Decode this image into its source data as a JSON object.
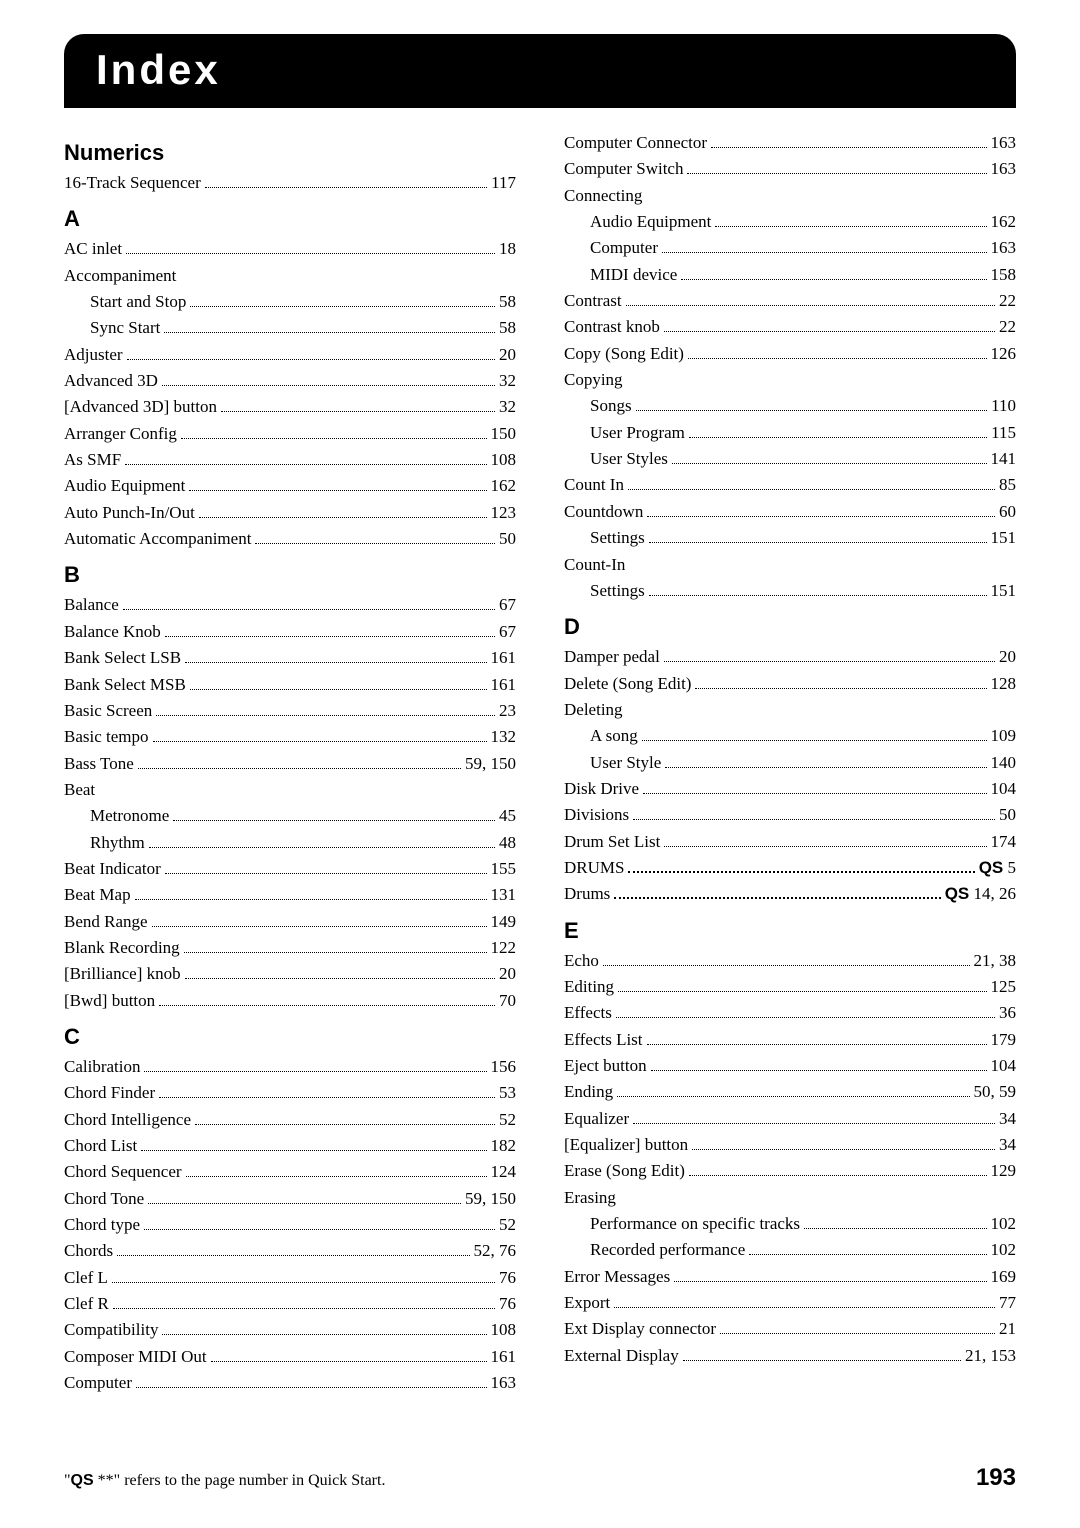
{
  "title": "Index",
  "footnote_pre": "\"",
  "footnote_qs": "QS",
  "footnote_post": " **\" refers to the page number in Quick Start.",
  "page_number": "193",
  "columns": [
    [
      {
        "type": "head",
        "text": "Numerics"
      },
      {
        "type": "entry",
        "label": "16-Track Sequencer",
        "page": "117"
      },
      {
        "type": "head",
        "text": "A"
      },
      {
        "type": "entry",
        "label": "AC inlet",
        "page": "18"
      },
      {
        "type": "entry",
        "label": "Accompaniment",
        "header": true
      },
      {
        "type": "entry",
        "label": "Start and Stop",
        "page": "58",
        "indent": 1
      },
      {
        "type": "entry",
        "label": "Sync Start",
        "page": "58",
        "indent": 1
      },
      {
        "type": "entry",
        "label": "Adjuster",
        "page": "20"
      },
      {
        "type": "entry",
        "label": "Advanced 3D",
        "page": "32"
      },
      {
        "type": "entry",
        "label": "[Advanced 3D] button",
        "page": "32"
      },
      {
        "type": "entry",
        "label": "Arranger Config",
        "page": "150"
      },
      {
        "type": "entry",
        "label": "As SMF",
        "page": "108"
      },
      {
        "type": "entry",
        "label": "Audio Equipment",
        "page": "162"
      },
      {
        "type": "entry",
        "label": "Auto Punch-In/Out",
        "page": "123"
      },
      {
        "type": "entry",
        "label": "Automatic Accompaniment",
        "page": "50"
      },
      {
        "type": "head",
        "text": "B"
      },
      {
        "type": "entry",
        "label": "Balance",
        "page": "67"
      },
      {
        "type": "entry",
        "label": "Balance Knob",
        "page": "67"
      },
      {
        "type": "entry",
        "label": "Bank Select LSB",
        "page": "161"
      },
      {
        "type": "entry",
        "label": "Bank Select MSB",
        "page": "161"
      },
      {
        "type": "entry",
        "label": "Basic Screen",
        "page": "23"
      },
      {
        "type": "entry",
        "label": "Basic tempo",
        "page": "132"
      },
      {
        "type": "entry",
        "label": "Bass Tone",
        "page": "59, 150"
      },
      {
        "type": "entry",
        "label": "Beat",
        "header": true
      },
      {
        "type": "entry",
        "label": "Metronome",
        "page": "45",
        "indent": 1
      },
      {
        "type": "entry",
        "label": "Rhythm",
        "page": "48",
        "indent": 1
      },
      {
        "type": "entry",
        "label": "Beat Indicator",
        "page": "155"
      },
      {
        "type": "entry",
        "label": "Beat Map",
        "page": "131"
      },
      {
        "type": "entry",
        "label": "Bend Range",
        "page": "149"
      },
      {
        "type": "entry",
        "label": "Blank Recording",
        "page": "122"
      },
      {
        "type": "entry",
        "label": "[Brilliance] knob",
        "page": "20"
      },
      {
        "type": "entry",
        "label": "[Bwd] button",
        "page": "70"
      },
      {
        "type": "head",
        "text": "C"
      },
      {
        "type": "entry",
        "label": "Calibration",
        "page": "156"
      },
      {
        "type": "entry",
        "label": "Chord Finder",
        "page": "53"
      },
      {
        "type": "entry",
        "label": "Chord Intelligence",
        "page": "52"
      },
      {
        "type": "entry",
        "label": "Chord List",
        "page": "182"
      },
      {
        "type": "entry",
        "label": "Chord Sequencer",
        "page": "124"
      },
      {
        "type": "entry",
        "label": "Chord Tone",
        "page": "59, 150"
      },
      {
        "type": "entry",
        "label": "Chord type",
        "page": "52"
      },
      {
        "type": "entry",
        "label": "Chords",
        "page": "52, 76"
      },
      {
        "type": "entry",
        "label": "Clef L",
        "page": "76"
      },
      {
        "type": "entry",
        "label": "Clef R",
        "page": "76"
      },
      {
        "type": "entry",
        "label": "Compatibility",
        "page": "108"
      },
      {
        "type": "entry",
        "label": "Composer MIDI Out",
        "page": "161"
      },
      {
        "type": "entry",
        "label": "Computer",
        "page": "163"
      }
    ],
    [
      {
        "type": "entry",
        "label": "Computer Connector",
        "page": "163"
      },
      {
        "type": "entry",
        "label": "Computer Switch",
        "page": "163"
      },
      {
        "type": "entry",
        "label": "Connecting",
        "header": true
      },
      {
        "type": "entry",
        "label": "Audio Equipment",
        "page": "162",
        "indent": 1
      },
      {
        "type": "entry",
        "label": "Computer",
        "page": "163",
        "indent": 1
      },
      {
        "type": "entry",
        "label": "MIDI device",
        "page": "158",
        "indent": 1
      },
      {
        "type": "entry",
        "label": "Contrast",
        "page": "22"
      },
      {
        "type": "entry",
        "label": "Contrast knob",
        "page": "22"
      },
      {
        "type": "entry",
        "label": "Copy (Song Edit)",
        "page": "126"
      },
      {
        "type": "entry",
        "label": "Copying",
        "header": true
      },
      {
        "type": "entry",
        "label": "Songs",
        "page": "110",
        "indent": 1
      },
      {
        "type": "entry",
        "label": "User Program",
        "page": "115",
        "indent": 1
      },
      {
        "type": "entry",
        "label": "User Styles",
        "page": "141",
        "indent": 1
      },
      {
        "type": "entry",
        "label": "Count In",
        "page": "85"
      },
      {
        "type": "entry",
        "label": "Countdown",
        "page": "60"
      },
      {
        "type": "entry",
        "label": "Settings",
        "page": "151",
        "indent": 1
      },
      {
        "type": "entry",
        "label": "Count-In",
        "header": true
      },
      {
        "type": "entry",
        "label": "Settings",
        "page": "151",
        "indent": 1
      },
      {
        "type": "head",
        "text": "D"
      },
      {
        "type": "entry",
        "label": "Damper pedal",
        "page": "20"
      },
      {
        "type": "entry",
        "label": "Delete (Song Edit)",
        "page": "128"
      },
      {
        "type": "entry",
        "label": "Deleting",
        "header": true
      },
      {
        "type": "entry",
        "label": "A song",
        "page": "109",
        "indent": 1
      },
      {
        "type": "entry",
        "label": "User Style",
        "page": "140",
        "indent": 1
      },
      {
        "type": "entry",
        "label": "Disk Drive",
        "page": "104"
      },
      {
        "type": "entry",
        "label": "Divisions",
        "page": "50"
      },
      {
        "type": "entry",
        "label": "Drum Set List",
        "page": "174"
      },
      {
        "type": "entry",
        "label": "DRUMS",
        "qs": "QS",
        "page": " 5",
        "bold": true
      },
      {
        "type": "entry",
        "label": "Drums",
        "qs": "QS",
        "page": " 14, 26",
        "bold": true
      },
      {
        "type": "head",
        "text": "E"
      },
      {
        "type": "entry",
        "label": "Echo",
        "page": "21, 38"
      },
      {
        "type": "entry",
        "label": "Editing",
        "page": "125"
      },
      {
        "type": "entry",
        "label": "Effects",
        "page": "36"
      },
      {
        "type": "entry",
        "label": "Effects List",
        "page": "179"
      },
      {
        "type": "entry",
        "label": "Eject button",
        "page": "104"
      },
      {
        "type": "entry",
        "label": "Ending",
        "page": "50, 59"
      },
      {
        "type": "entry",
        "label": "Equalizer",
        "page": "34"
      },
      {
        "type": "entry",
        "label": "[Equalizer] button",
        "page": "34"
      },
      {
        "type": "entry",
        "label": "Erase (Song Edit)",
        "page": "129"
      },
      {
        "type": "entry",
        "label": "Erasing",
        "header": true
      },
      {
        "type": "entry",
        "label": "Performance on specific tracks",
        "page": "102",
        "indent": 1
      },
      {
        "type": "entry",
        "label": "Recorded performance",
        "page": "102",
        "indent": 1
      },
      {
        "type": "entry",
        "label": "Error Messages",
        "page": "169"
      },
      {
        "type": "entry",
        "label": "Export",
        "page": "77"
      },
      {
        "type": "entry",
        "label": "Ext Display connector",
        "page": "21"
      },
      {
        "type": "entry",
        "label": "External Display",
        "page": "21, 153"
      }
    ]
  ]
}
